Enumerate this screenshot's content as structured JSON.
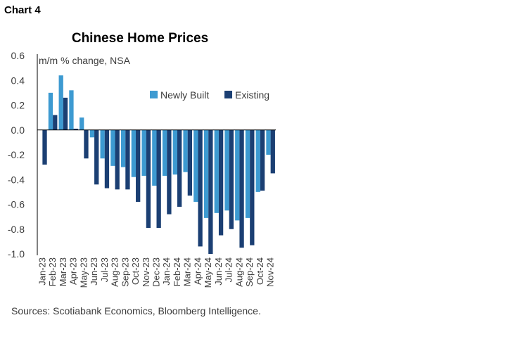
{
  "header": {
    "label": "Chart 4"
  },
  "footer": {
    "sources": "Sources: Scotiabank Economics, Bloomberg Intelligence."
  },
  "colors": {
    "newly_built": "#3d9ad1",
    "existing": "#1b3f73",
    "axis": "#000000"
  },
  "chart_data": {
    "type": "bar",
    "title": "Chinese Home Prices",
    "ylabel": "m/m % change, NSA",
    "xlabel": "",
    "ylim": [
      -1.0,
      0.6
    ],
    "yticks": [
      0.6,
      0.4,
      0.2,
      0.0,
      -0.2,
      -0.4,
      -0.6,
      -0.8,
      -1.0
    ],
    "ytick_labels": [
      "0.6",
      "0.4",
      "0.2",
      "0.0",
      "-0.2",
      "-0.4",
      "-0.6",
      "-0.8",
      "-1.0"
    ],
    "grid": false,
    "legend_position": "top-right",
    "categories": [
      "Jan-23",
      "Feb-23",
      "Mar-23",
      "Apr-23",
      "May-23",
      "Jun-23",
      "Jul-23",
      "Aug-23",
      "Sep-23",
      "Oct-23",
      "Nov-23",
      "Dec-23",
      "Jan-24",
      "Feb-24",
      "Mar-24",
      "Apr-24",
      "May-24",
      "Jun-24",
      "Jul-24",
      "Aug-24",
      "Sep-24",
      "Oct-24",
      "Nov-24"
    ],
    "series": [
      {
        "name": "Newly Built",
        "values": [
          0.0,
          0.3,
          0.44,
          0.32,
          0.1,
          -0.06,
          -0.23,
          -0.29,
          -0.3,
          -0.38,
          -0.37,
          -0.45,
          -0.37,
          -0.36,
          -0.34,
          -0.58,
          -0.71,
          -0.67,
          -0.65,
          -0.73,
          -0.71,
          -0.5,
          -0.2
        ]
      },
      {
        "name": "Existing",
        "values": [
          -0.28,
          0.12,
          0.26,
          0.01,
          -0.23,
          -0.44,
          -0.47,
          -0.48,
          -0.48,
          -0.58,
          -0.79,
          -0.79,
          -0.68,
          -0.62,
          -0.53,
          -0.94,
          -1.0,
          -0.85,
          -0.8,
          -0.95,
          -0.93,
          -0.49,
          -0.35
        ]
      }
    ]
  }
}
